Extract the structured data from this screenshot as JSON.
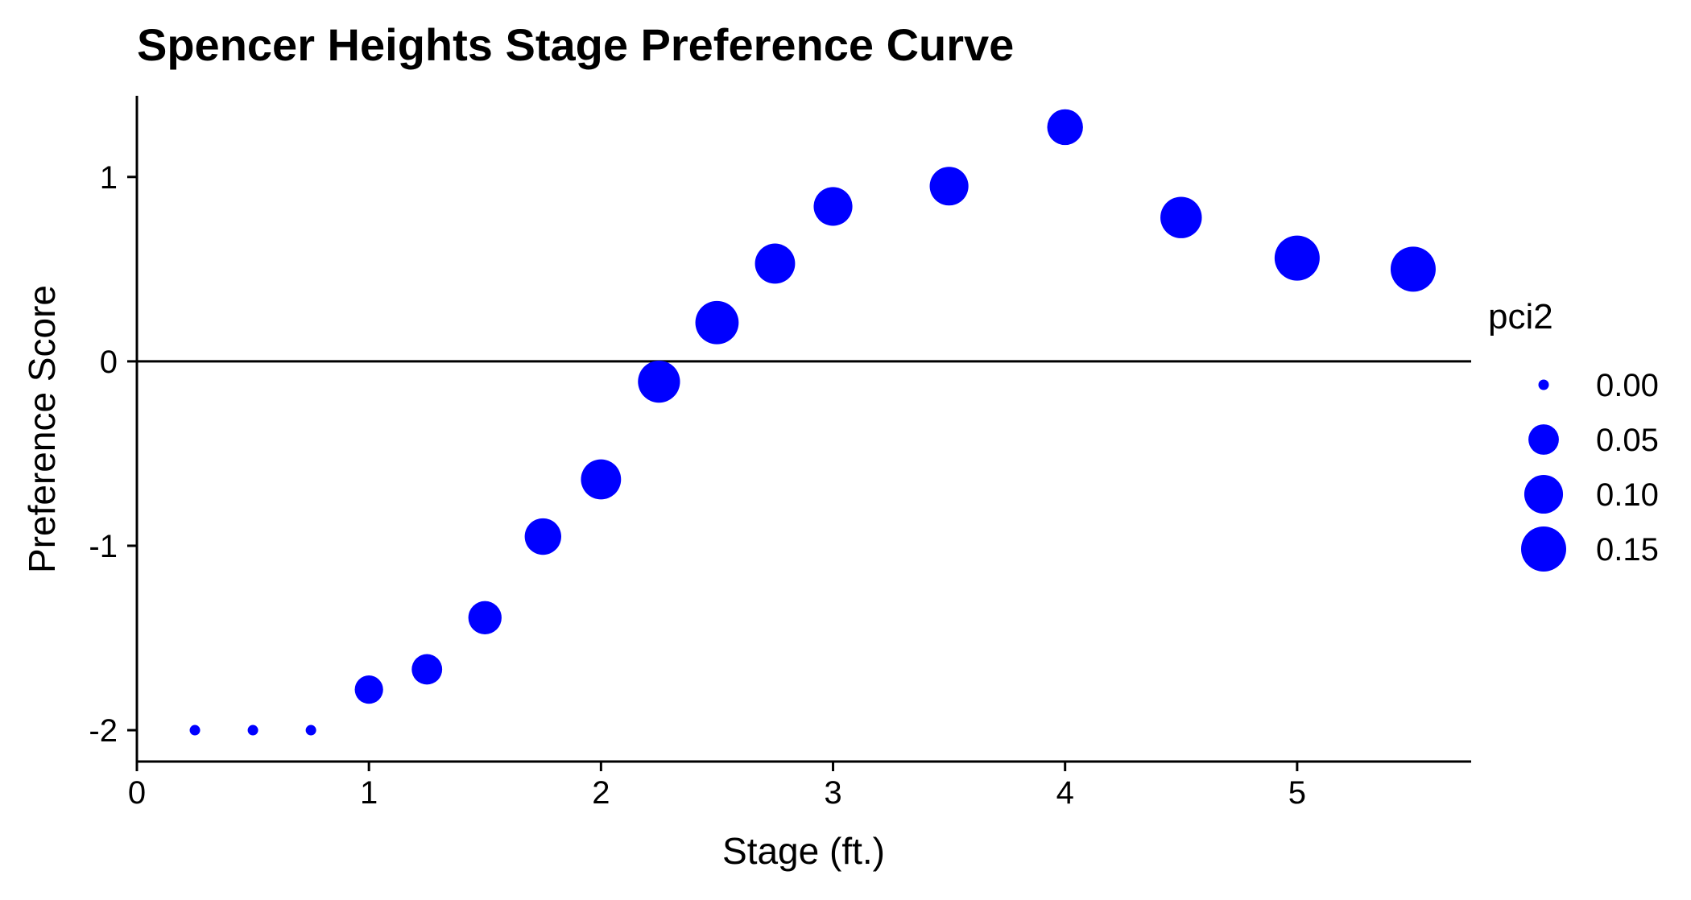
{
  "chart_data": {
    "type": "scatter",
    "title": "Spencer Heights Stage Preference Curve",
    "xlabel": "Stage (ft.)",
    "ylabel": "Preference Score",
    "xlim": [
      0,
      5.75
    ],
    "ylim": [
      -2.17,
      1.44
    ],
    "xticks": [
      0,
      1,
      2,
      3,
      4,
      5
    ],
    "xtick_labels": [
      "0",
      "1",
      "2",
      "3",
      "4",
      "5"
    ],
    "yticks": [
      -2,
      -1,
      0,
      1
    ],
    "ytick_labels": [
      "-2",
      "-1",
      "0",
      "1"
    ],
    "reference_line_y": 0,
    "grid": false,
    "point_color": "#0000FF",
    "size_variable": "pci2",
    "legend": {
      "title": "pci2",
      "placement": "right",
      "entries": [
        {
          "label": "0.00",
          "value": 0.0
        },
        {
          "label": "0.05",
          "value": 0.05
        },
        {
          "label": "0.10",
          "value": 0.1
        },
        {
          "label": "0.15",
          "value": 0.15
        }
      ]
    },
    "points": [
      {
        "x": 0.25,
        "y": -2.0,
        "size": 0.0
      },
      {
        "x": 0.5,
        "y": -2.0,
        "size": 0.0
      },
      {
        "x": 0.75,
        "y": -2.0,
        "size": 0.0
      },
      {
        "x": 1.0,
        "y": -1.78,
        "size": 0.04
      },
      {
        "x": 1.25,
        "y": -1.67,
        "size": 0.05
      },
      {
        "x": 1.5,
        "y": -1.39,
        "size": 0.065
      },
      {
        "x": 1.75,
        "y": -0.95,
        "size": 0.085
      },
      {
        "x": 2.0,
        "y": -0.64,
        "size": 0.11
      },
      {
        "x": 2.25,
        "y": -0.11,
        "size": 0.125
      },
      {
        "x": 2.5,
        "y": 0.21,
        "size": 0.135
      },
      {
        "x": 2.75,
        "y": 0.53,
        "size": 0.11
      },
      {
        "x": 3.0,
        "y": 0.84,
        "size": 0.1
      },
      {
        "x": 3.5,
        "y": 0.95,
        "size": 0.1
      },
      {
        "x": 4.0,
        "y": 1.27,
        "size": 0.08
      },
      {
        "x": 4.5,
        "y": 0.78,
        "size": 0.12
      },
      {
        "x": 5.0,
        "y": 0.56,
        "size": 0.15
      },
      {
        "x": 5.5,
        "y": 0.5,
        "size": 0.15
      }
    ]
  }
}
